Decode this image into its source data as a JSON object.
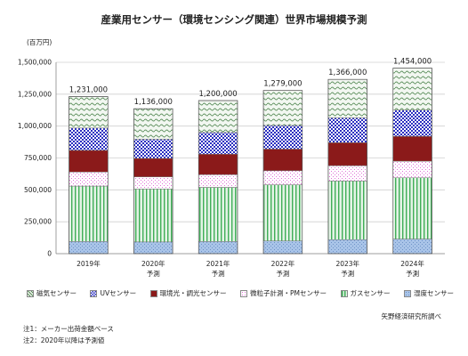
{
  "title": "産業用センサー（環境センシング関連）世界市場規模予測",
  "unit_label": "(百万円)",
  "source": "矢野経済研究所調べ",
  "notes": [
    "注1：メーカー出荷金額ベース",
    "注2：2020年以降は予測値"
  ],
  "colors": {
    "湿度センサー": "#a9c4e8",
    "ガスセンサー": "#3fae57",
    "微粒子計測・PMセンサー": "#e070d8",
    "環境光・調光センサー": "#8b1a1a",
    "UVセンサー": "#2b2fc0",
    "磁気センサー": "#4a8a4a"
  },
  "chart_data": {
    "type": "bar",
    "stacked": true,
    "title": "産業用センサー（環境センシング関連）世界市場規模予測",
    "ylabel": "(百万円)",
    "ylim": [
      0,
      1500000
    ],
    "yticks": [
      "0",
      "250,000",
      "500,000",
      "750,000",
      "1,000,000",
      "1,250,000",
      "1,500,000"
    ],
    "categories": [
      {
        "year": "2019年",
        "sub": ""
      },
      {
        "year": "2020年",
        "sub": "予測"
      },
      {
        "year": "2021年",
        "sub": "予測"
      },
      {
        "year": "2022年",
        "sub": "予測"
      },
      {
        "year": "2023年",
        "sub": "予測"
      },
      {
        "year": "2024年",
        "sub": "予測"
      }
    ],
    "totals": [
      1231000,
      1136000,
      1200000,
      1279000,
      1366000,
      1454000
    ],
    "total_labels": [
      "1,231,000",
      "1,136,000",
      "1,200,000",
      "1,279,000",
      "1,366,000",
      "1,454,000"
    ],
    "series": [
      {
        "name": "湿度センサー",
        "values": [
          95000,
          92000,
          95000,
          100000,
          110000,
          115000
        ]
      },
      {
        "name": "ガスセンサー",
        "values": [
          435000,
          415000,
          425000,
          440000,
          460000,
          480000
        ]
      },
      {
        "name": "微粒子計測・PMセンサー",
        "values": [
          110000,
          95000,
          100000,
          110000,
          120000,
          130000
        ]
      },
      {
        "name": "環境光・調光センサー",
        "values": [
          170000,
          145000,
          160000,
          170000,
          180000,
          195000
        ]
      },
      {
        "name": "UVセンサー",
        "values": [
          175000,
          150000,
          170000,
          185000,
          195000,
          205000
        ]
      },
      {
        "name": "磁気センサー",
        "values": [
          246000,
          239000,
          250000,
          274000,
          301000,
          329000
        ]
      }
    ],
    "legend_order": [
      "磁気センサー",
      "UVセンサー",
      "環境光・調光センサー",
      "微粒子計測・PMセンサー",
      "ガスセンサー",
      "湿度センサー"
    ],
    "legend_position": "bottom",
    "grid": true
  }
}
